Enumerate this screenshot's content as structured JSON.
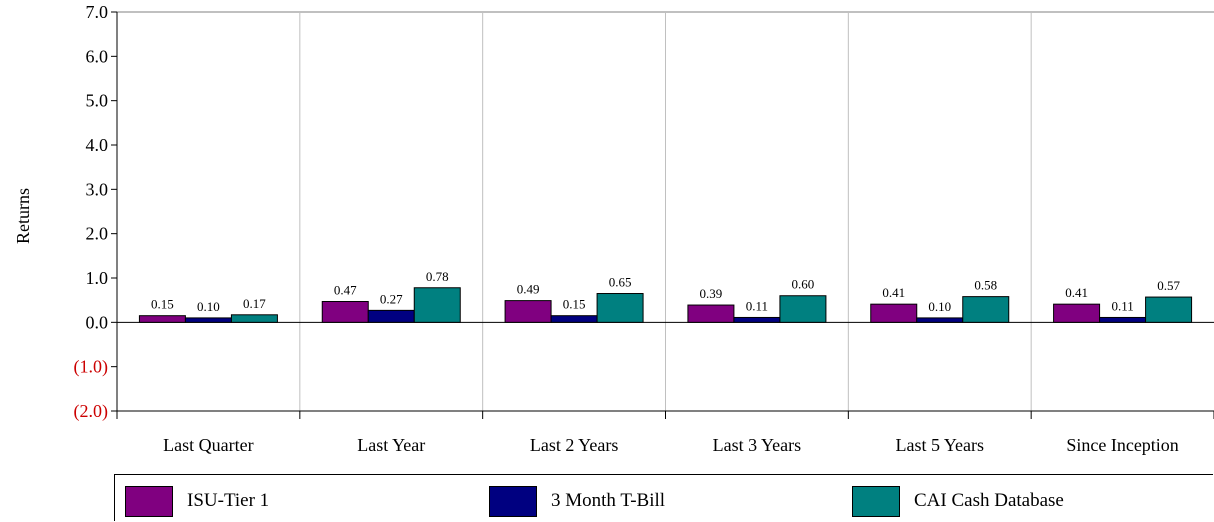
{
  "chart_data": {
    "type": "bar",
    "title": "",
    "xlabel": "",
    "ylabel": "Returns",
    "ylim": [
      -2.0,
      7.0
    ],
    "yticks": [
      {
        "value": 7.0,
        "label": "7.0"
      },
      {
        "value": 6.0,
        "label": "6.0"
      },
      {
        "value": 5.0,
        "label": "5.0"
      },
      {
        "value": 4.0,
        "label": "4.0"
      },
      {
        "value": 3.0,
        "label": "3.0"
      },
      {
        "value": 2.0,
        "label": "2.0"
      },
      {
        "value": 1.0,
        "label": "1.0"
      },
      {
        "value": 0.0,
        "label": "0.0"
      },
      {
        "value": -1.0,
        "label": "(1.0)"
      },
      {
        "value": -2.0,
        "label": "(2.0)"
      }
    ],
    "negative_tick_color": "#cc0000",
    "grid": "vertical separators between categories",
    "legend_position": "bottom",
    "categories": [
      "Last Quarter",
      "Last Year",
      "Last 2 Years",
      "Last 3 Years",
      "Last 5 Years",
      "Since Inception"
    ],
    "series": [
      {
        "name": "ISU-Tier 1",
        "color": "#800080",
        "values": [
          0.15,
          0.47,
          0.49,
          0.39,
          0.41,
          0.41
        ],
        "labels": [
          "0.15",
          "0.47",
          "0.49",
          "0.39",
          "0.41",
          "0.41"
        ]
      },
      {
        "name": "3 Month T-Bill",
        "color": "#000080",
        "values": [
          0.1,
          0.27,
          0.15,
          0.11,
          0.1,
          0.11
        ],
        "labels": [
          "0.10",
          "0.27",
          "0.15",
          "0.11",
          "0.10",
          "0.11"
        ]
      },
      {
        "name": "CAI Cash Database",
        "color": "#008080",
        "values": [
          0.17,
          0.78,
          0.65,
          0.6,
          0.58,
          0.57
        ],
        "labels": [
          "0.17",
          "0.78",
          "0.65",
          "0.60",
          "0.58",
          "0.57"
        ]
      }
    ]
  }
}
